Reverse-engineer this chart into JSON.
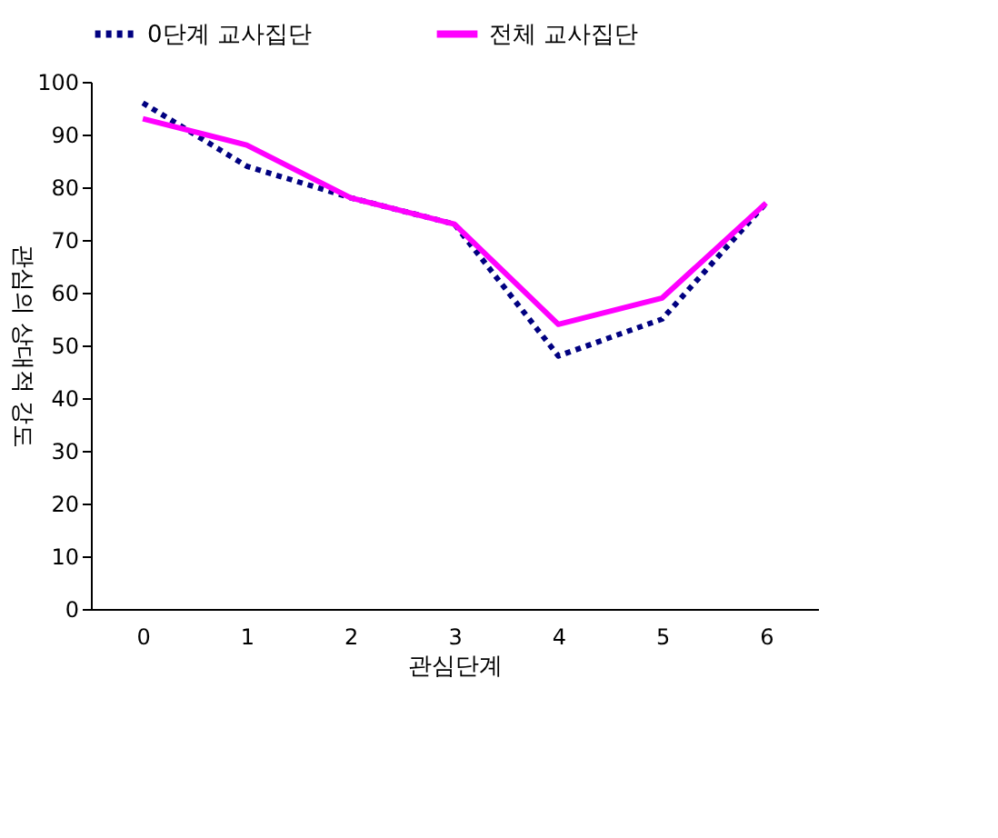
{
  "chart_data": {
    "type": "line",
    "xlabel": "관심단계",
    "ylabel": "관심의 상대적 강도",
    "categories": [
      "0",
      "1",
      "2",
      "3",
      "4",
      "5",
      "6"
    ],
    "ylim": [
      0,
      100
    ],
    "yticks": [
      0,
      10,
      20,
      30,
      40,
      50,
      60,
      70,
      80,
      90,
      100
    ],
    "grid": false,
    "legend": "top",
    "marker": "none",
    "series": [
      {
        "name": "0단계 교사집단",
        "color": "#000080",
        "line_style": "dotted",
        "values": [
          96,
          84,
          78,
          73,
          48,
          55,
          77
        ]
      },
      {
        "name": "전체 교사집단",
        "color": "#ff00ff",
        "line_style": "solid",
        "values": [
          93,
          88,
          78,
          73,
          54,
          59,
          77
        ]
      }
    ]
  }
}
